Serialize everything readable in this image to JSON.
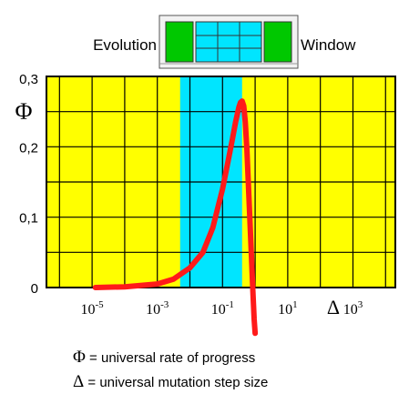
{
  "chart_data": {
    "type": "line",
    "title_left": "Evolution",
    "title_right": "Window",
    "ylabel": "Φ",
    "xlabel": "Δ",
    "y_ticks": [
      "0",
      "0,1",
      "0,2",
      "0,3"
    ],
    "y_tick_values": [
      0,
      0.1,
      0.2,
      0.3
    ],
    "ylim": [
      0,
      0.3
    ],
    "x_ticks": [
      {
        "base": "10",
        "exp": "-5"
      },
      {
        "base": "10",
        "exp": "-3"
      },
      {
        "base": "10",
        "exp": "-1"
      },
      {
        "base": "10",
        "exp": "1"
      },
      {
        "base": "10",
        "exp": "3"
      }
    ],
    "x_tick_exponents": [
      -5,
      -3,
      -1,
      1,
      3
    ],
    "x_scale": "log",
    "xlim_exponent": [
      -6.4,
      4.3
    ],
    "grid": true,
    "background_color": "#ffff00",
    "window_color": "#00e5ff",
    "window_range_exponent": [
      -2.3,
      -0.4
    ],
    "series": [
      {
        "color": "#ff1a1a",
        "x_exponent": [
          -4.9,
          -4.0,
          -3.0,
          -2.5,
          -2.0,
          -1.6,
          -1.3,
          -1.0,
          -0.85,
          -0.7,
          -0.6,
          -0.5,
          -0.45,
          -0.4,
          -0.35,
          -0.3,
          -0.25,
          -0.2,
          -0.15,
          -0.1,
          -0.07,
          -0.05,
          -0.03,
          0.0
        ],
        "y": [
          0.0,
          0.001,
          0.005,
          0.012,
          0.028,
          0.05,
          0.085,
          0.14,
          0.175,
          0.21,
          0.235,
          0.256,
          0.263,
          0.265,
          0.258,
          0.235,
          0.195,
          0.14,
          0.085,
          0.03,
          -0.005,
          -0.025,
          -0.045,
          -0.065
        ]
      }
    ]
  },
  "legend": {
    "phi_symbol": "Φ",
    "phi_text": " = universal rate of progress",
    "delta_symbol": "Δ",
    "delta_text": " = universal mutation step size"
  }
}
